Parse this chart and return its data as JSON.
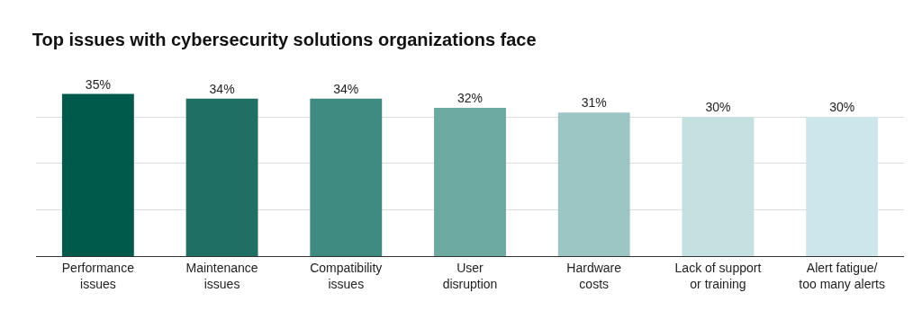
{
  "chart_data": {
    "type": "bar",
    "title": "Top issues with cybersecurity solutions organizations face",
    "categories": [
      "Performance\nissues",
      "Maintenance\nissues",
      "Compatibility\nissues",
      "User\ndisruption",
      "Hardware\ncosts",
      "Lack of support\nor training",
      "Alert fatigue/\ntoo many alerts"
    ],
    "values": [
      35,
      34,
      34,
      32,
      31,
      30,
      30
    ],
    "colors": [
      "#005a4b",
      "#1f6f65",
      "#3f8a81",
      "#6ba9a1",
      "#9cc6c4",
      "#c4e0e1",
      "#cde6eb"
    ],
    "value_labels": [
      "35%",
      "34%",
      "34%",
      "32%",
      "31%",
      "30%",
      "30%"
    ],
    "yticks": [
      {
        "value": 0,
        "label": null
      },
      {
        "value": 10,
        "label": null
      },
      {
        "value": 20,
        "label": null
      },
      {
        "value": 30,
        "label": null
      }
    ],
    "grid": "y",
    "tick_labels": "x"
  }
}
